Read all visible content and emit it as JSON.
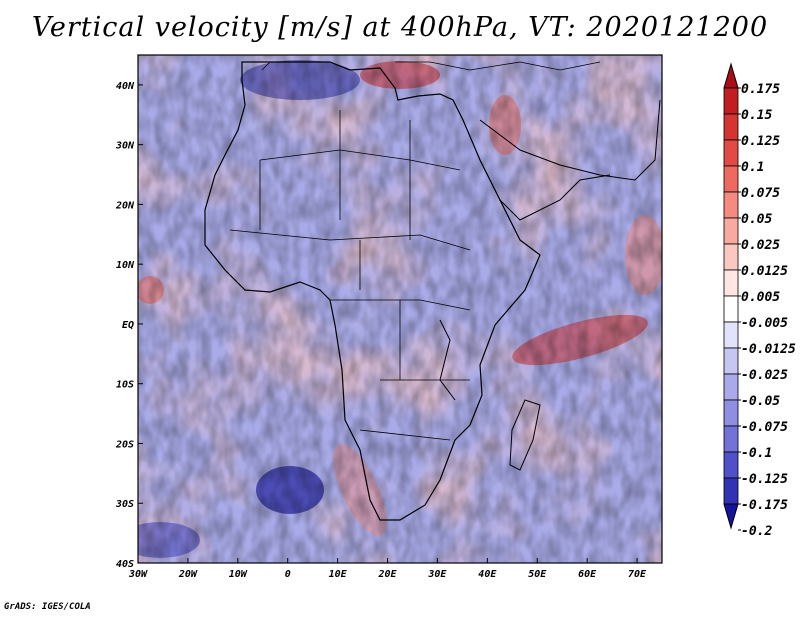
{
  "title": "Vertical velocity [m/s] at 400hPa, VT: 2020121200",
  "credit": "GrADS: IGES/COLA",
  "map": {
    "lon_labels": [
      "30W",
      "20W",
      "10W",
      "0",
      "10E",
      "20E",
      "30E",
      "40E",
      "50E",
      "60E",
      "70E"
    ],
    "lat_labels": [
      "40N",
      "30N",
      "20N",
      "10N",
      "EQ",
      "10S",
      "20S",
      "30S",
      "40S"
    ],
    "lon_range": [
      -30,
      75
    ],
    "lat_range": [
      -40,
      45
    ]
  },
  "colorbar": {
    "labels": [
      "0.175",
      "0.15",
      "0.125",
      "0.1",
      "0.075",
      "0.05",
      "0.025",
      "0.0125",
      "0.005",
      "-0.005",
      "-0.0125",
      "-0.025",
      "-0.05",
      "-0.075",
      "-0.1",
      "-0.125",
      "-0.175",
      "-0.2"
    ],
    "colors": [
      "#a80c14",
      "#c21e22",
      "#d43530",
      "#e24b45",
      "#ec6a60",
      "#f48a80",
      "#f8aaa0",
      "#fbc8c0",
      "#ffe6e2",
      "#ffffff",
      "#e2e2fa",
      "#c6c6f2",
      "#aaaaea",
      "#8e8ee2",
      "#7272d8",
      "#5050c8",
      "#3232b4",
      "#14149c"
    ]
  }
}
